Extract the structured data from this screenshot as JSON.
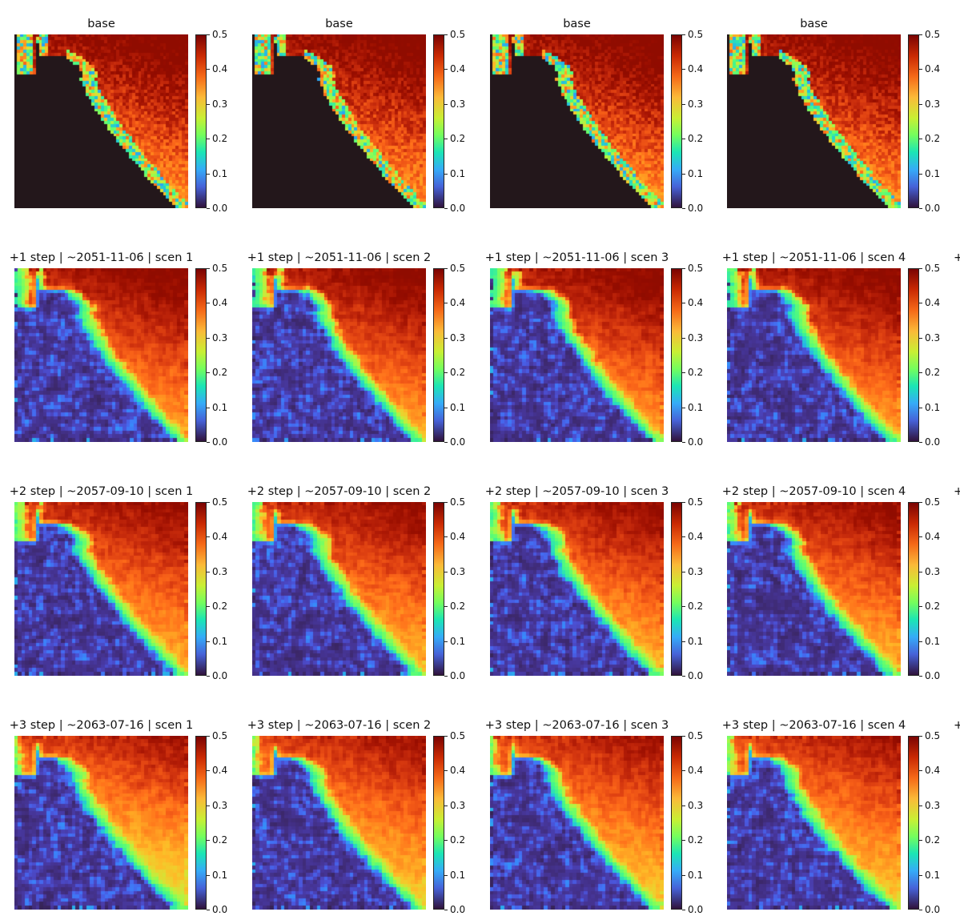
{
  "figure": {
    "colormap": "turbo",
    "colorbar_ticks": [
      "0.0",
      "0.1",
      "0.2",
      "0.3",
      "0.4",
      "0.5"
    ],
    "edge_glyph": "+"
  },
  "chart_data": [
    {
      "type": "heatmap",
      "title": "base",
      "scenario": 1,
      "step": 0,
      "vmin": 0.0,
      "vmax": 0.5
    },
    {
      "type": "heatmap",
      "title": "base",
      "scenario": 2,
      "step": 0,
      "vmin": 0.0,
      "vmax": 0.5
    },
    {
      "type": "heatmap",
      "title": "base",
      "scenario": 3,
      "step": 0,
      "vmin": 0.0,
      "vmax": 0.5
    },
    {
      "type": "heatmap",
      "title": "base",
      "scenario": 4,
      "step": 0,
      "vmin": 0.0,
      "vmax": 0.5
    },
    {
      "type": "heatmap",
      "title": "+1 step | ~2051-11-06 | scen 1",
      "scenario": 1,
      "step": 1,
      "vmin": 0.0,
      "vmax": 0.5
    },
    {
      "type": "heatmap",
      "title": "+1 step | ~2051-11-06 | scen 2",
      "scenario": 2,
      "step": 1,
      "vmin": 0.0,
      "vmax": 0.5
    },
    {
      "type": "heatmap",
      "title": "+1 step | ~2051-11-06 | scen 3",
      "scenario": 3,
      "step": 1,
      "vmin": 0.0,
      "vmax": 0.5
    },
    {
      "type": "heatmap",
      "title": "+1 step | ~2051-11-06 | scen 4",
      "scenario": 4,
      "step": 1,
      "vmin": 0.0,
      "vmax": 0.5
    },
    {
      "type": "heatmap",
      "title": "+2 step | ~2057-09-10 | scen 1",
      "scenario": 1,
      "step": 2,
      "vmin": 0.0,
      "vmax": 0.5
    },
    {
      "type": "heatmap",
      "title": "+2 step | ~2057-09-10 | scen 2",
      "scenario": 2,
      "step": 2,
      "vmin": 0.0,
      "vmax": 0.5
    },
    {
      "type": "heatmap",
      "title": "+2 step | ~2057-09-10 | scen 3",
      "scenario": 3,
      "step": 2,
      "vmin": 0.0,
      "vmax": 0.5
    },
    {
      "type": "heatmap",
      "title": "+2 step | ~2057-09-10 | scen 4",
      "scenario": 4,
      "step": 2,
      "vmin": 0.0,
      "vmax": 0.5
    },
    {
      "type": "heatmap",
      "title": "+3 step | ~2063-07-16 | scen 1",
      "scenario": 1,
      "step": 3,
      "vmin": 0.0,
      "vmax": 0.5
    },
    {
      "type": "heatmap",
      "title": "+3 step | ~2063-07-16 | scen 2",
      "scenario": 2,
      "step": 3,
      "vmin": 0.0,
      "vmax": 0.5
    },
    {
      "type": "heatmap",
      "title": "+3 step | ~2063-07-16 | scen 3",
      "scenario": 3,
      "step": 3,
      "vmin": 0.0,
      "vmax": 0.5
    },
    {
      "type": "heatmap",
      "title": "+3 step | ~2063-07-16 | scen 4",
      "scenario": 4,
      "step": 3,
      "vmin": 0.0,
      "vmax": 0.5
    }
  ]
}
